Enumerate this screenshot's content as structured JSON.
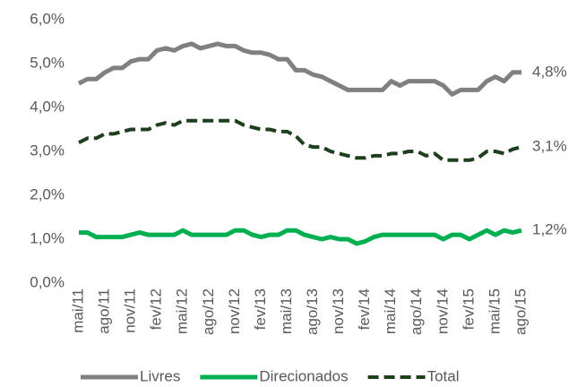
{
  "chart_data": {
    "type": "line",
    "categories": [
      "mai/11",
      null,
      null,
      "ago/11",
      null,
      null,
      "nov/11",
      null,
      null,
      "fev/12",
      null,
      null,
      "mai/12",
      null,
      null,
      "ago/12",
      null,
      null,
      "nov/12",
      null,
      null,
      "fev/13",
      null,
      null,
      "mai/13",
      null,
      null,
      "ago/13",
      null,
      null,
      "nov/13",
      null,
      null,
      "fev/14",
      null,
      null,
      "mai/14",
      null,
      null,
      "ago/14",
      null,
      null,
      "nov/14",
      null,
      null,
      "fev/15",
      null,
      null,
      "mai/15",
      null,
      null,
      "ago/15"
    ],
    "series": [
      {
        "name": "Livres",
        "color": "#808080",
        "style": "solid",
        "values": [
          4.55,
          4.65,
          4.65,
          4.8,
          4.9,
          4.9,
          5.05,
          5.1,
          5.1,
          5.3,
          5.35,
          5.3,
          5.4,
          5.45,
          5.35,
          5.4,
          5.45,
          5.4,
          5.4,
          5.3,
          5.25,
          5.25,
          5.2,
          5.1,
          5.1,
          4.85,
          4.85,
          4.75,
          4.7,
          4.6,
          4.5,
          4.4,
          4.4,
          4.4,
          4.4,
          4.4,
          4.6,
          4.5,
          4.6,
          4.6,
          4.6,
          4.6,
          4.5,
          4.3,
          4.4,
          4.4,
          4.4,
          4.6,
          4.7,
          4.6,
          4.8,
          4.8
        ],
        "value_labels": [
          null,
          null,
          null,
          null,
          null,
          null,
          null,
          null,
          null,
          null,
          null,
          null,
          null,
          null,
          null,
          null,
          null,
          null,
          null,
          null,
          null,
          null,
          null,
          null,
          null,
          null,
          null,
          null,
          null,
          null,
          null,
          null,
          null,
          null,
          null,
          null,
          null,
          null,
          null,
          null,
          null,
          null,
          null,
          null,
          null,
          null,
          null,
          null,
          null,
          null,
          null,
          "4,8%"
        ]
      },
      {
        "name": "Direcionados",
        "color": "#00b050",
        "style": "solid",
        "values": [
          1.15,
          1.15,
          1.05,
          1.05,
          1.05,
          1.05,
          1.1,
          1.15,
          1.1,
          1.1,
          1.1,
          1.1,
          1.2,
          1.1,
          1.1,
          1.1,
          1.1,
          1.1,
          1.2,
          1.2,
          1.1,
          1.05,
          1.1,
          1.1,
          1.2,
          1.2,
          1.1,
          1.05,
          1.0,
          1.05,
          1.0,
          1.0,
          0.9,
          0.95,
          1.05,
          1.1,
          1.1,
          1.1,
          1.1,
          1.1,
          1.1,
          1.1,
          1.0,
          1.1,
          1.1,
          1.0,
          1.1,
          1.2,
          1.1,
          1.2,
          1.15,
          1.2
        ],
        "value_labels": [
          null,
          null,
          null,
          null,
          null,
          null,
          null,
          null,
          null,
          null,
          null,
          null,
          null,
          null,
          null,
          null,
          null,
          null,
          null,
          null,
          null,
          null,
          null,
          null,
          null,
          null,
          null,
          null,
          null,
          null,
          null,
          null,
          null,
          null,
          null,
          null,
          null,
          null,
          null,
          null,
          null,
          null,
          null,
          null,
          null,
          null,
          null,
          null,
          null,
          null,
          null,
          "1,2%"
        ]
      },
      {
        "name": "Total",
        "color": "#1e3f1e",
        "style": "dashed",
        "values": [
          3.2,
          3.3,
          3.3,
          3.4,
          3.4,
          3.45,
          3.5,
          3.5,
          3.5,
          3.6,
          3.65,
          3.6,
          3.7,
          3.7,
          3.7,
          3.7,
          3.7,
          3.7,
          3.7,
          3.6,
          3.55,
          3.5,
          3.5,
          3.45,
          3.45,
          3.35,
          3.15,
          3.1,
          3.1,
          3.0,
          2.95,
          2.9,
          2.85,
          2.85,
          2.9,
          2.9,
          2.95,
          2.95,
          3.0,
          3.0,
          2.9,
          2.95,
          2.8,
          2.8,
          2.8,
          2.8,
          2.85,
          3.0,
          3.0,
          2.95,
          3.05,
          3.1
        ],
        "value_labels": [
          null,
          null,
          null,
          null,
          null,
          null,
          null,
          null,
          null,
          null,
          null,
          null,
          null,
          null,
          null,
          null,
          null,
          null,
          null,
          null,
          null,
          null,
          null,
          null,
          null,
          null,
          null,
          null,
          null,
          null,
          null,
          null,
          null,
          null,
          null,
          null,
          null,
          null,
          null,
          null,
          null,
          null,
          null,
          null,
          null,
          null,
          null,
          null,
          null,
          null,
          null,
          "3,1%"
        ]
      }
    ],
    "ylim": [
      0,
      6
    ],
    "yticks": [
      {
        "value": 0,
        "label": "0,0%"
      },
      {
        "value": 1,
        "label": "1,0%"
      },
      {
        "value": 2,
        "label": "2,0%"
      },
      {
        "value": 3,
        "label": "3,0%"
      },
      {
        "value": 4,
        "label": "4,0%"
      },
      {
        "value": 5,
        "label": "5,0%"
      },
      {
        "value": 6,
        "label": "6,0%"
      }
    ],
    "grid": false,
    "legend": "bottom"
  }
}
